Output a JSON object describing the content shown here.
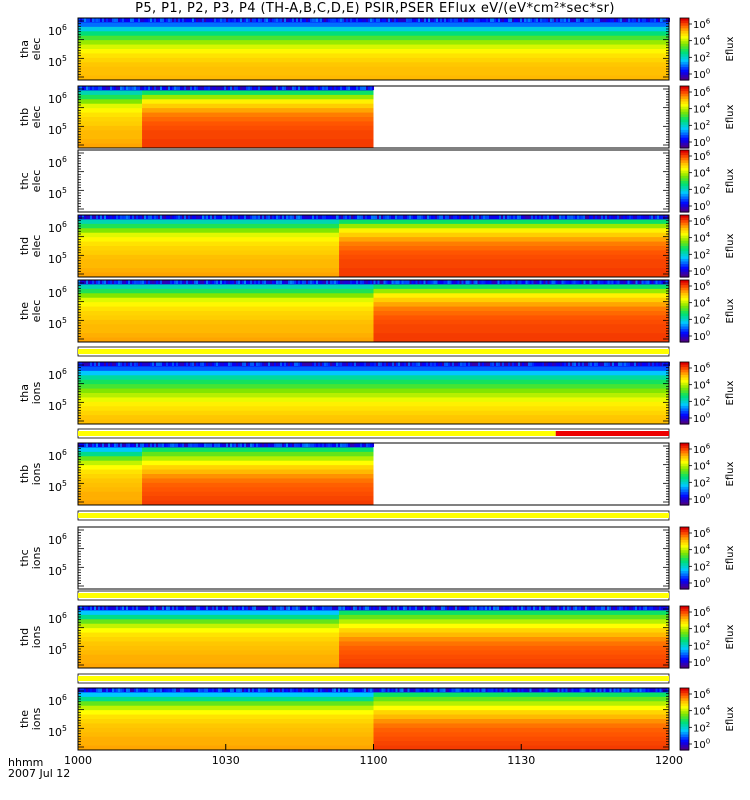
{
  "title": "P5, P1, P2, P3, P4 (TH-A,B,C,D,E) PSIR,PSER EFlux eV/(eV*cm²*sec*sr)",
  "footer": {
    "time_unit": "hhmm",
    "date": "2007 Jul 12"
  },
  "colors": {
    "bar_yellow": "#ffff00",
    "bar_red": "#ee0000",
    "frame": "#000000"
  },
  "chart_data": [
    {
      "type": "heatmap",
      "name": "tha elec",
      "ylabel": [
        "tha",
        "elec"
      ],
      "ytick_labels": [
        "10⁶",
        "10⁵"
      ],
      "colorbar": {
        "label": "Eflux",
        "ticks": [
          "10⁶",
          "10⁴",
          "10²",
          "10⁰"
        ]
      },
      "segments": [
        {
          "x": [
            "1000",
            "1200"
          ],
          "state": "stable-magnetosheath"
        }
      ]
    },
    {
      "type": "heatmap",
      "name": "thb elec",
      "ylabel": [
        "thb",
        "elec"
      ],
      "ytick_labels": [
        "10⁶",
        "10⁵"
      ],
      "colorbar": {
        "label": "Eflux",
        "ticks": [
          "10⁶",
          "10⁴",
          "10²",
          "10⁰"
        ]
      },
      "segments": [
        {
          "x": [
            "1000",
            "1013"
          ],
          "state": "orange"
        },
        {
          "x": [
            "1013",
            "1100"
          ],
          "state": "red"
        }
      ],
      "no_data_after": "1100"
    },
    {
      "type": "heatmap",
      "name": "thc elec",
      "ylabel": [
        "thc",
        "elec"
      ],
      "ytick_labels": [
        "10⁶",
        "10⁵"
      ],
      "colorbar": {
        "label": "Eflux",
        "ticks": [
          "10⁶",
          "10⁴",
          "10²",
          "10⁰"
        ]
      },
      "segments": [],
      "no_data": true
    },
    {
      "type": "heatmap",
      "name": "thd elec",
      "ylabel": [
        "thd",
        "elec"
      ],
      "ytick_labels": [
        "10⁶",
        "10⁵"
      ],
      "colorbar": {
        "label": "Eflux",
        "ticks": [
          "10⁶",
          "10⁴",
          "10²",
          "10⁰"
        ]
      },
      "segments": [
        {
          "x": [
            "1000",
            "1053"
          ],
          "state": "orange"
        },
        {
          "x": [
            "1053",
            "1200"
          ],
          "state": "red"
        }
      ]
    },
    {
      "type": "heatmap",
      "name": "the elec",
      "ylabel": [
        "the",
        "elec"
      ],
      "ytick_labels": [
        "10⁶",
        "10⁵"
      ],
      "colorbar": {
        "label": "Eflux",
        "ticks": [
          "10⁶",
          "10⁴",
          "10²",
          "10⁰"
        ]
      },
      "segments": [
        {
          "x": [
            "1000",
            "1100"
          ],
          "state": "orange"
        },
        {
          "x": [
            "1100",
            "1200"
          ],
          "state": "red"
        }
      ]
    },
    {
      "type": "heatmap",
      "name": "tha ions",
      "ylabel": [
        "tha",
        "ions"
      ],
      "ytick_labels": [
        "10⁶",
        "10⁵"
      ],
      "colorbar": {
        "label": "Eflux",
        "ticks": [
          "10⁶",
          "10⁴",
          "10²",
          "10⁰"
        ]
      },
      "segments": [
        {
          "x": [
            "1000",
            "1200"
          ],
          "state": "ions-sheath"
        }
      ]
    },
    {
      "type": "heatmap",
      "name": "thb ions",
      "ylabel": [
        "thb",
        "ions"
      ],
      "ytick_labels": [
        "10⁶",
        "10⁵"
      ],
      "colorbar": {
        "label": "Eflux",
        "ticks": [
          "10⁶",
          "10⁴",
          "10²",
          "10⁰"
        ]
      },
      "segments": [
        {
          "x": [
            "1000",
            "1013"
          ],
          "state": "ions-orange"
        },
        {
          "x": [
            "1013",
            "1100"
          ],
          "state": "ions-red"
        }
      ],
      "no_data_after": "1100"
    },
    {
      "type": "heatmap",
      "name": "thc ions",
      "ylabel": [
        "thc",
        "ions"
      ],
      "ytick_labels": [
        "10⁶",
        "10⁵"
      ],
      "colorbar": {
        "label": "Eflux",
        "ticks": [
          "10⁶",
          "10⁴",
          "10²",
          "10⁰"
        ]
      },
      "segments": [],
      "no_data": true
    },
    {
      "type": "heatmap",
      "name": "thd ions",
      "ylabel": [
        "thd",
        "ions"
      ],
      "ytick_labels": [
        "10⁶",
        "10⁵"
      ],
      "colorbar": {
        "label": "Eflux",
        "ticks": [
          "10⁶",
          "10⁴",
          "10²",
          "10⁰"
        ]
      },
      "segments": [
        {
          "x": [
            "1000",
            "1053"
          ],
          "state": "ions-orange"
        },
        {
          "x": [
            "1053",
            "1200"
          ],
          "state": "ions-red"
        }
      ]
    },
    {
      "type": "heatmap",
      "name": "the ions",
      "ylabel": [
        "the",
        "ions"
      ],
      "ytick_labels": [
        "10⁶",
        "10⁵"
      ],
      "colorbar": {
        "label": "Eflux",
        "ticks": [
          "10⁶",
          "10⁴",
          "10²",
          "10⁰"
        ]
      },
      "segments": [
        {
          "x": [
            "1000",
            "1100"
          ],
          "state": "ions-orange"
        },
        {
          "x": [
            "1100",
            "1200"
          ],
          "state": "ions-red"
        }
      ]
    }
  ],
  "x_axis": {
    "ticks": [
      "1000",
      "1030",
      "1100",
      "1130",
      "1200"
    ]
  },
  "status_bars": [
    {
      "name": "tha ions bar",
      "segments": [
        {
          "x": [
            "1000",
            "1200"
          ],
          "color": "yellow"
        }
      ]
    },
    {
      "name": "thb ions bar",
      "segments": [
        {
          "x": [
            "1000",
            "1137"
          ],
          "color": "yellow"
        },
        {
          "x": [
            "1137",
            "1200"
          ],
          "color": "red"
        }
      ]
    },
    {
      "name": "thc ions bar",
      "segments": [
        {
          "x": [
            "1000",
            "1200"
          ],
          "color": "yellow"
        }
      ]
    },
    {
      "name": "thd ions bar",
      "segments": [
        {
          "x": [
            "1000",
            "1200"
          ],
          "color": "yellow"
        }
      ]
    },
    {
      "name": "the ions bar",
      "segments": [
        {
          "x": [
            "1000",
            "1200"
          ],
          "color": "yellow"
        }
      ]
    }
  ]
}
